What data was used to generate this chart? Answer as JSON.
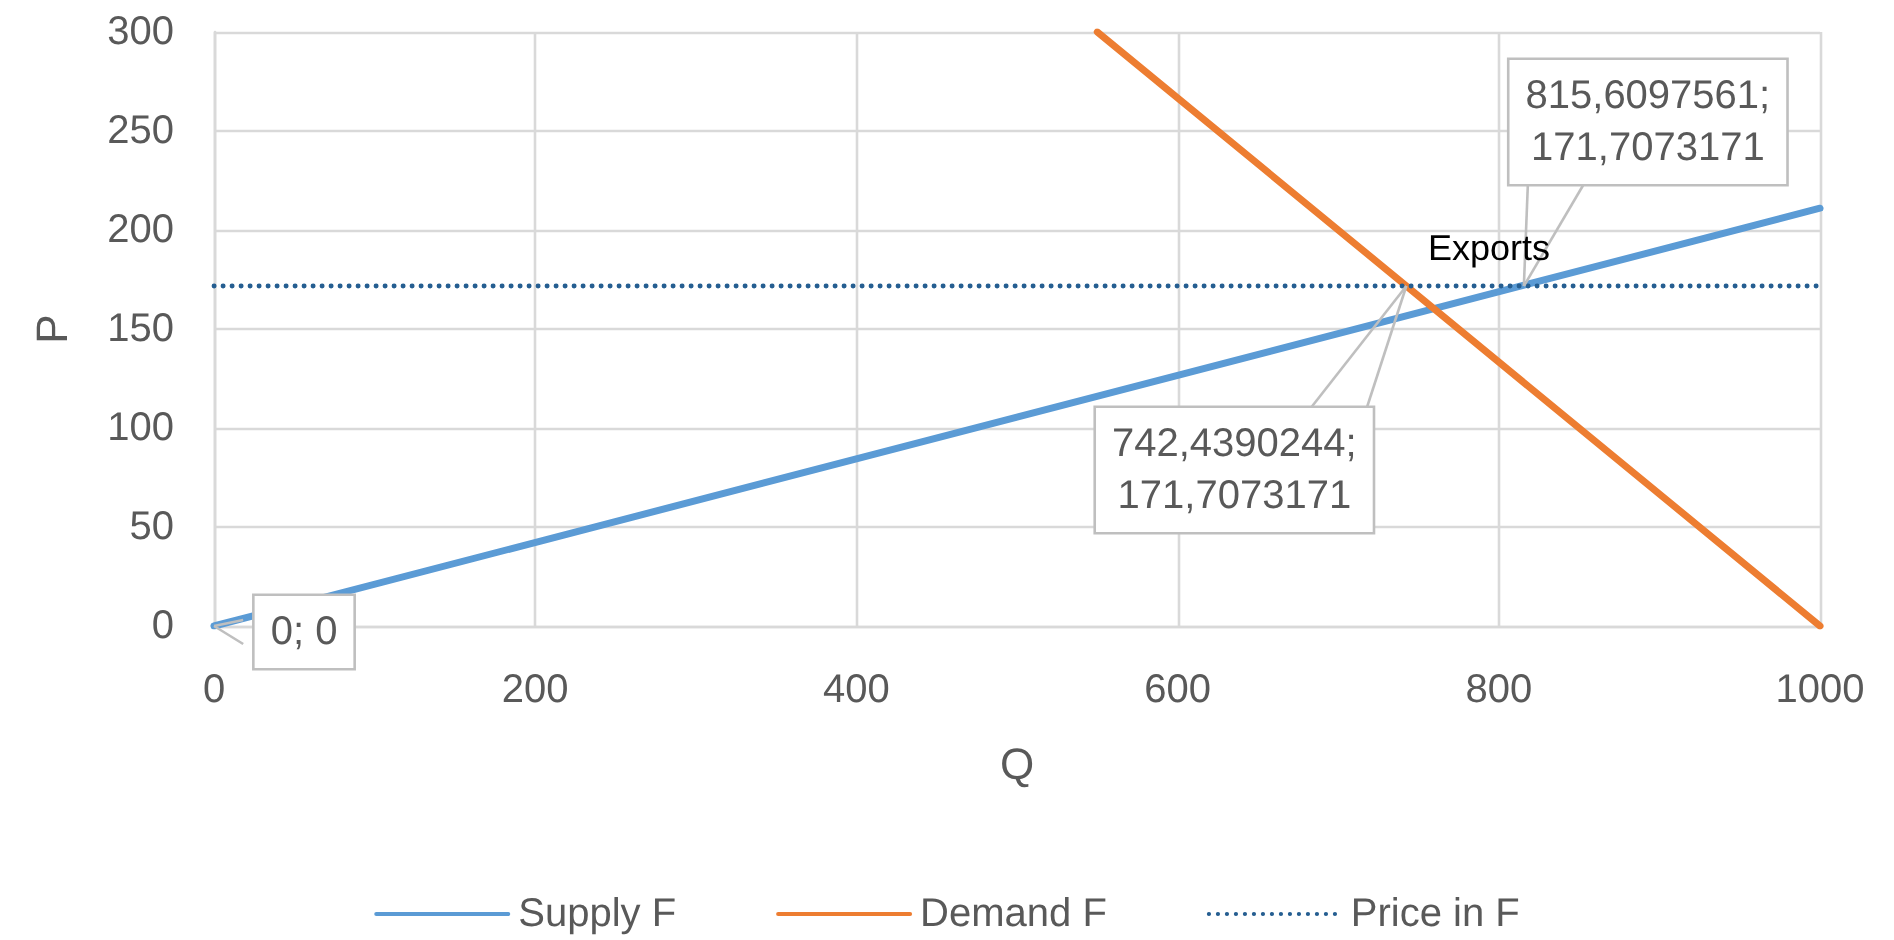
{
  "chart_data": {
    "type": "line",
    "xlabel": "Q",
    "ylabel": "P",
    "series": [
      {
        "name": "Supply F",
        "color": "#5b9bd5",
        "x": [
          0,
          1000
        ],
        "values": [
          0,
          211
        ]
      },
      {
        "name": "Demand F",
        "color": "#ed7d31",
        "x": [
          550,
          1000
        ],
        "values": [
          300,
          0
        ]
      },
      {
        "name": "Price in F",
        "color": "#255e91",
        "x": [
          0,
          1000
        ],
        "values": [
          171.7073171,
          171.7073171
        ],
        "line_style": "dotted"
      }
    ],
    "xlim": [
      0,
      1000
    ],
    "xticks": [
      0,
      200,
      400,
      600,
      800,
      1000
    ],
    "ylim": [
      0,
      300
    ],
    "yticks": [
      0,
      50,
      100,
      150,
      200,
      250,
      300
    ],
    "annotations": [
      {
        "text": "815,6097561;\n171,7073171",
        "x": 815.6097561,
        "y": 171.7073171
      },
      {
        "text": "742,4390244;\n171,7073171",
        "x": 742.4390244,
        "y": 171.7073171
      },
      {
        "text": "0; 0",
        "x": 0,
        "y": 0
      },
      {
        "text": "Exports",
        "x": 779,
        "y": 171.7
      }
    ],
    "grid": true,
    "legend": "bottom",
    "marker": "none",
    "line_style": "solid"
  }
}
